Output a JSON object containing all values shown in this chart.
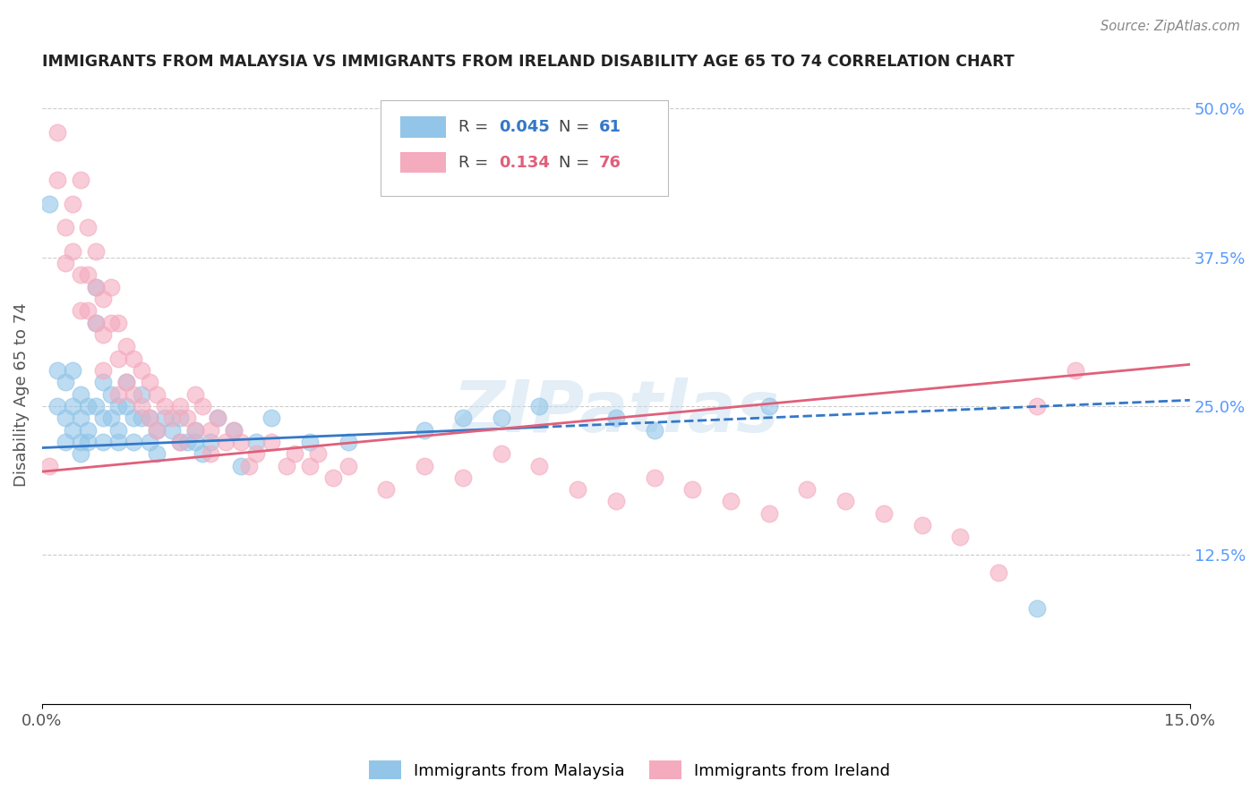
{
  "title": "IMMIGRANTS FROM MALAYSIA VS IMMIGRANTS FROM IRELAND DISABILITY AGE 65 TO 74 CORRELATION CHART",
  "source_text": "Source: ZipAtlas.com",
  "ylabel": "Disability Age 65 to 74",
  "xlim": [
    0.0,
    0.15
  ],
  "ylim": [
    0.0,
    0.52
  ],
  "ytick_labels_right": [
    "12.5%",
    "25.0%",
    "37.5%",
    "50.0%"
  ],
  "ytick_values_right": [
    0.125,
    0.25,
    0.375,
    0.5
  ],
  "malaysia_R": 0.045,
  "malaysia_N": 61,
  "ireland_R": 0.134,
  "ireland_N": 76,
  "malaysia_color": "#92C5E8",
  "ireland_color": "#F4ABBE",
  "malaysia_line_color": "#3478C8",
  "ireland_line_color": "#E0607A",
  "watermark_text": "ZIPatlas",
  "background_color": "#ffffff",
  "malaysia_x": [
    0.001,
    0.002,
    0.002,
    0.003,
    0.003,
    0.003,
    0.004,
    0.004,
    0.004,
    0.005,
    0.005,
    0.005,
    0.005,
    0.006,
    0.006,
    0.006,
    0.007,
    0.007,
    0.007,
    0.008,
    0.008,
    0.008,
    0.009,
    0.009,
    0.01,
    0.01,
    0.01,
    0.011,
    0.011,
    0.012,
    0.012,
    0.013,
    0.013,
    0.014,
    0.014,
    0.015,
    0.015,
    0.016,
    0.017,
    0.018,
    0.018,
    0.019,
    0.02,
    0.02,
    0.021,
    0.022,
    0.023,
    0.025,
    0.026,
    0.028,
    0.03,
    0.035,
    0.04,
    0.05,
    0.055,
    0.06,
    0.065,
    0.075,
    0.08,
    0.095,
    0.13
  ],
  "malaysia_y": [
    0.42,
    0.28,
    0.25,
    0.27,
    0.24,
    0.22,
    0.28,
    0.25,
    0.23,
    0.26,
    0.24,
    0.22,
    0.21,
    0.25,
    0.23,
    0.22,
    0.35,
    0.32,
    0.25,
    0.27,
    0.24,
    0.22,
    0.26,
    0.24,
    0.25,
    0.23,
    0.22,
    0.27,
    0.25,
    0.24,
    0.22,
    0.26,
    0.24,
    0.24,
    0.22,
    0.23,
    0.21,
    0.24,
    0.23,
    0.24,
    0.22,
    0.22,
    0.23,
    0.22,
    0.21,
    0.22,
    0.24,
    0.23,
    0.2,
    0.22,
    0.24,
    0.22,
    0.22,
    0.23,
    0.24,
    0.24,
    0.25,
    0.24,
    0.23,
    0.25,
    0.08
  ],
  "ireland_x": [
    0.001,
    0.002,
    0.002,
    0.003,
    0.003,
    0.004,
    0.004,
    0.005,
    0.005,
    0.005,
    0.006,
    0.006,
    0.006,
    0.007,
    0.007,
    0.007,
    0.008,
    0.008,
    0.008,
    0.009,
    0.009,
    0.01,
    0.01,
    0.01,
    0.011,
    0.011,
    0.012,
    0.012,
    0.013,
    0.013,
    0.014,
    0.014,
    0.015,
    0.015,
    0.016,
    0.017,
    0.018,
    0.018,
    0.019,
    0.02,
    0.02,
    0.021,
    0.022,
    0.022,
    0.023,
    0.024,
    0.025,
    0.026,
    0.027,
    0.028,
    0.03,
    0.032,
    0.033,
    0.035,
    0.036,
    0.038,
    0.04,
    0.045,
    0.05,
    0.055,
    0.06,
    0.065,
    0.07,
    0.075,
    0.08,
    0.085,
    0.09,
    0.095,
    0.1,
    0.105,
    0.11,
    0.115,
    0.12,
    0.125,
    0.13,
    0.135
  ],
  "ireland_y": [
    0.2,
    0.48,
    0.44,
    0.4,
    0.37,
    0.42,
    0.38,
    0.36,
    0.33,
    0.44,
    0.4,
    0.36,
    0.33,
    0.38,
    0.35,
    0.32,
    0.34,
    0.31,
    0.28,
    0.35,
    0.32,
    0.32,
    0.29,
    0.26,
    0.3,
    0.27,
    0.29,
    0.26,
    0.28,
    0.25,
    0.27,
    0.24,
    0.26,
    0.23,
    0.25,
    0.24,
    0.25,
    0.22,
    0.24,
    0.26,
    0.23,
    0.25,
    0.23,
    0.21,
    0.24,
    0.22,
    0.23,
    0.22,
    0.2,
    0.21,
    0.22,
    0.2,
    0.21,
    0.2,
    0.21,
    0.19,
    0.2,
    0.18,
    0.2,
    0.19,
    0.21,
    0.2,
    0.18,
    0.17,
    0.19,
    0.18,
    0.17,
    0.16,
    0.18,
    0.17,
    0.16,
    0.15,
    0.14,
    0.11,
    0.25,
    0.28
  ]
}
